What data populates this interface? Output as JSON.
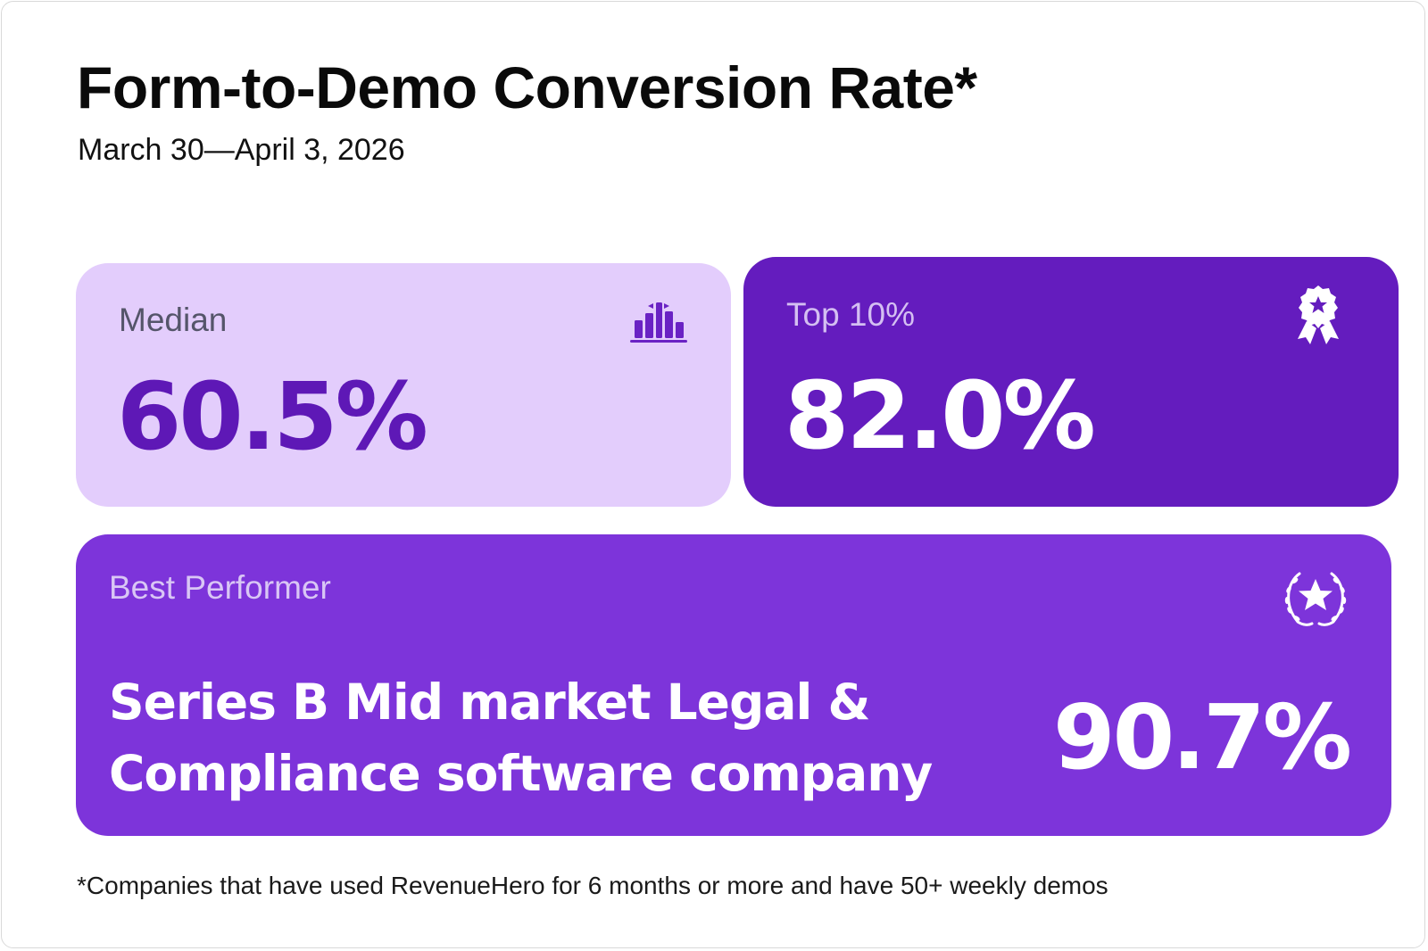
{
  "header": {
    "title": "Form-to-Demo Conversion Rate*",
    "date_range": "March 30—April 3, 2026"
  },
  "cards": {
    "median": {
      "label": "Median",
      "value": "60.5%",
      "icon": "bar-chart-icon",
      "background": "#e3cdfc",
      "accent": "#5e18b6"
    },
    "top10": {
      "label": "Top 10%",
      "value": "82.0%",
      "icon": "award-ribbon-icon",
      "background": "#641cbe"
    },
    "best": {
      "label": "Best Performer",
      "name": "Series B Mid market Legal & Compliance software company",
      "value": "90.7%",
      "icon": "laurel-star-icon",
      "background": "#7d34da"
    }
  },
  "footnote": "*Companies that have used RevenueHero for 6 months or more and have 50+ weekly demos"
}
